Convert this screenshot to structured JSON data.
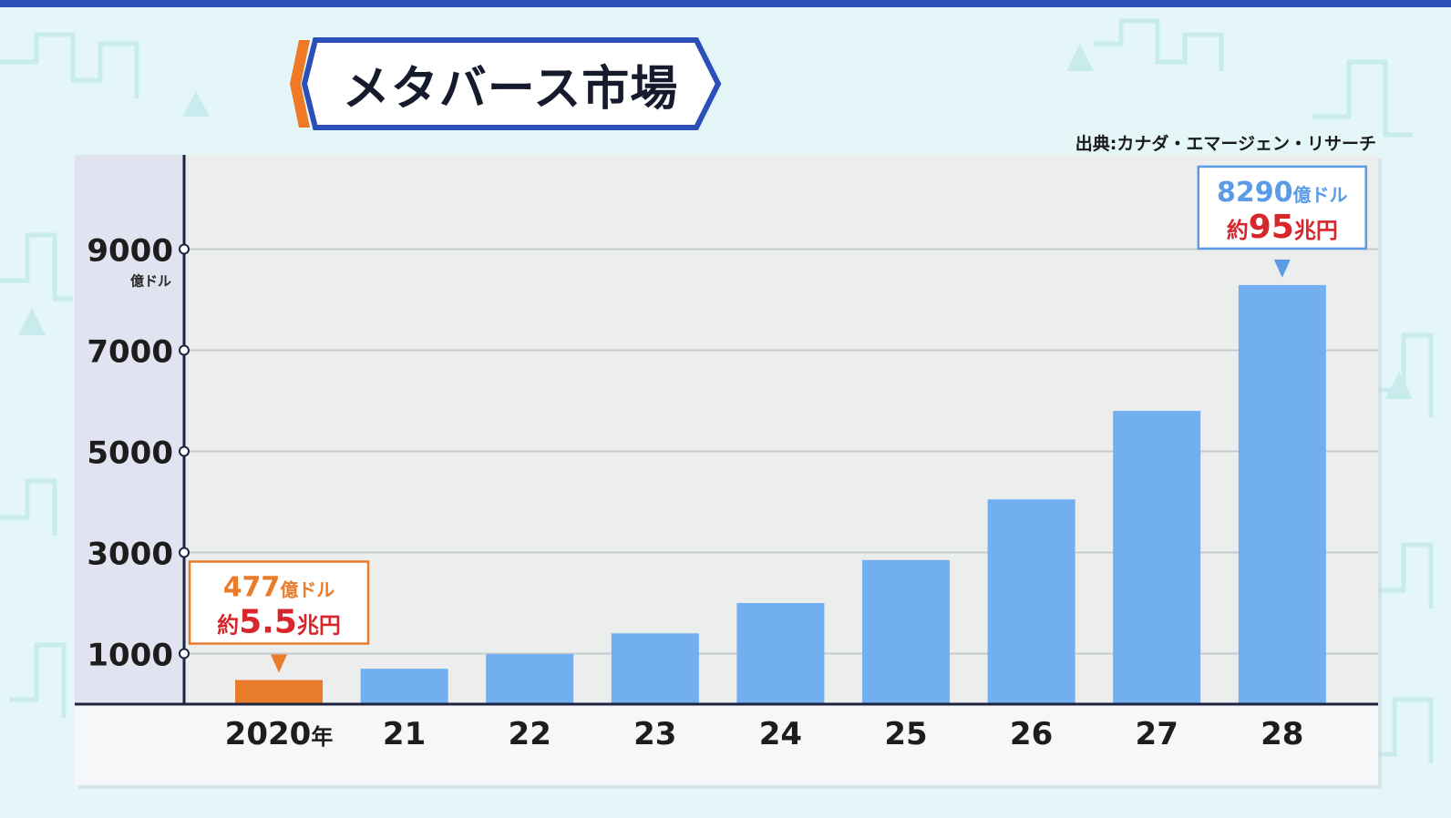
{
  "title": "メタバース市場",
  "source": "出典:カナダ・エマージェン・リサーチ",
  "colors": {
    "bar": "#72aff0",
    "highlight_bar": "#e97c2b",
    "accent_red": "#d8262d",
    "axis": "#1d2340",
    "title_border": "#2d4fb8",
    "title_accent": "#ee7a26"
  },
  "chart_data": {
    "type": "bar",
    "categories": [
      "2020年",
      "21",
      "22",
      "23",
      "24",
      "25",
      "26",
      "27",
      "28"
    ],
    "values": [
      477,
      700,
      990,
      1400,
      2000,
      2850,
      4050,
      5800,
      8290
    ],
    "highlight_index": 0,
    "ylim": [
      0,
      10000
    ],
    "yticks": [
      "9000",
      "7000",
      "5000",
      "3000",
      "1000"
    ],
    "ytick_values": [
      9000,
      7000,
      5000,
      3000,
      1000
    ],
    "yunit": "億ドル",
    "grid": true,
    "annotations": [
      {
        "index": 0,
        "usd": "477",
        "usd_unit": "億ドル",
        "yen_prefix": "約",
        "yen": "5.5",
        "yen_unit": "兆円",
        "color": "#e97c2b"
      },
      {
        "index": 8,
        "usd": "8290",
        "usd_unit": "億ドル",
        "yen_prefix": "約",
        "yen": "95",
        "yen_unit": "兆円",
        "color": "#5b9be6"
      }
    ]
  }
}
